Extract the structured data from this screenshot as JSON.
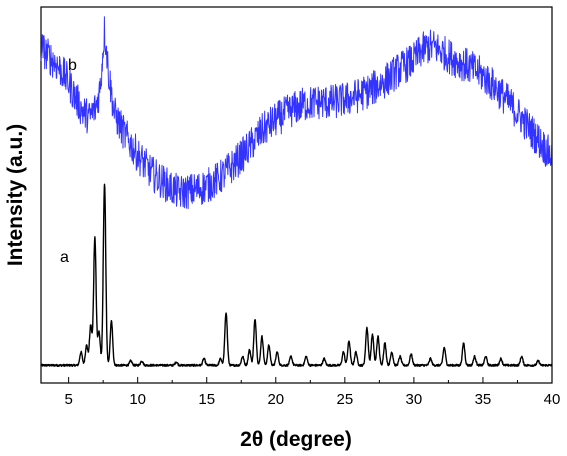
{
  "chart_data": {
    "type": "line",
    "title": "",
    "xlabel": "2θ (degree)",
    "ylabel": "Intensity (a.u.)",
    "xlim": [
      3,
      40
    ],
    "xticks": [
      5,
      10,
      15,
      20,
      25,
      30,
      35,
      40
    ],
    "yticks": [],
    "grid": false,
    "legend": "none",
    "series": [
      {
        "name": "a",
        "color": "#000000",
        "baseline": 8,
        "peaks": [
          [
            5.9,
            6
          ],
          [
            6.3,
            9
          ],
          [
            6.6,
            18
          ],
          [
            6.9,
            58
          ],
          [
            7.2,
            15
          ],
          [
            7.6,
            82
          ],
          [
            8.1,
            20
          ],
          [
            9.5,
            2
          ],
          [
            10.3,
            2
          ],
          [
            12.8,
            1.5
          ],
          [
            14.8,
            3
          ],
          [
            16.0,
            3
          ],
          [
            16.4,
            24
          ],
          [
            17.6,
            4
          ],
          [
            18.1,
            7
          ],
          [
            18.5,
            21
          ],
          [
            19.0,
            13
          ],
          [
            19.5,
            9
          ],
          [
            20.1,
            6
          ],
          [
            21.1,
            4
          ],
          [
            22.2,
            4
          ],
          [
            23.5,
            3
          ],
          [
            24.9,
            6
          ],
          [
            25.3,
            11
          ],
          [
            25.8,
            6
          ],
          [
            26.6,
            17
          ],
          [
            27.0,
            14
          ],
          [
            27.4,
            13
          ],
          [
            27.9,
            10
          ],
          [
            28.4,
            6
          ],
          [
            29.0,
            4
          ],
          [
            29.8,
            5
          ],
          [
            31.2,
            3
          ],
          [
            32.2,
            8
          ],
          [
            33.6,
            10
          ],
          [
            34.4,
            4
          ],
          [
            35.2,
            4
          ],
          [
            36.3,
            3
          ],
          [
            37.8,
            4
          ],
          [
            39.0,
            2
          ]
        ]
      },
      {
        "name": "b",
        "color": "#3333ff",
        "points": [
          [
            3.0,
            152
          ],
          [
            3.5,
            148
          ],
          [
            4.0,
            145
          ],
          [
            4.5,
            141
          ],
          [
            5.0,
            136
          ],
          [
            5.5,
            129
          ],
          [
            6.0,
            123
          ],
          [
            6.5,
            120
          ],
          [
            7.0,
            125
          ],
          [
            7.3,
            134
          ],
          [
            7.6,
            160
          ],
          [
            7.9,
            140
          ],
          [
            8.3,
            122
          ],
          [
            9.0,
            113
          ],
          [
            10.0,
            103
          ],
          [
            11.0,
            95
          ],
          [
            12.0,
            90
          ],
          [
            13.0,
            86
          ],
          [
            14.0,
            87
          ],
          [
            15.0,
            89
          ],
          [
            16.0,
            93
          ],
          [
            17.0,
            99
          ],
          [
            18.0,
            106
          ],
          [
            19.0,
            114
          ],
          [
            20.0,
            119
          ],
          [
            21.0,
            123
          ],
          [
            22.0,
            126
          ],
          [
            23.0,
            127
          ],
          [
            24.0,
            127
          ],
          [
            25.0,
            128
          ],
          [
            26.0,
            130
          ],
          [
            27.0,
            133
          ],
          [
            28.0,
            137
          ],
          [
            29.0,
            142
          ],
          [
            30.0,
            146
          ],
          [
            30.5,
            150
          ],
          [
            31.0,
            152
          ],
          [
            31.5,
            152
          ],
          [
            32.0,
            150
          ],
          [
            33.0,
            146
          ],
          [
            34.0,
            143
          ],
          [
            35.0,
            139
          ],
          [
            36.0,
            133
          ],
          [
            37.0,
            126
          ],
          [
            38.0,
            118
          ],
          [
            39.0,
            110
          ],
          [
            40.0,
            102
          ]
        ]
      }
    ]
  }
}
